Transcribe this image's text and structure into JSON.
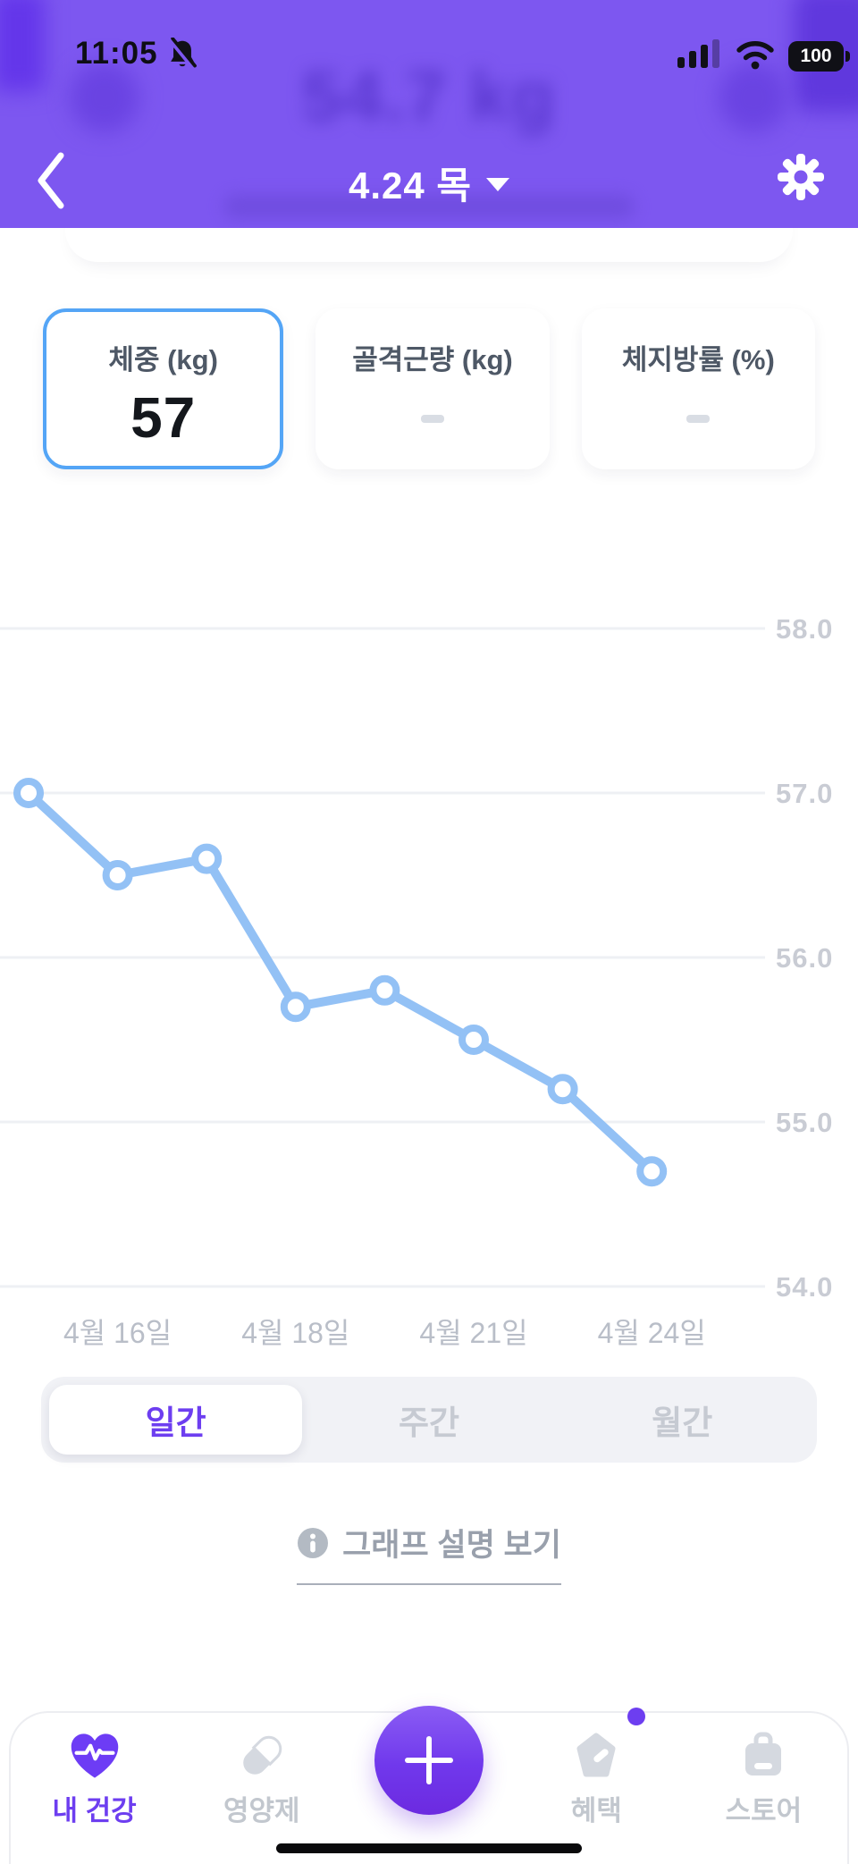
{
  "status_bar": {
    "time": "11:05",
    "battery_percent": "100",
    "icons": [
      "notifications-muted",
      "cellular-signal",
      "wifi",
      "battery"
    ]
  },
  "header": {
    "title": "4.24 목",
    "blurred_background_value": "54.7 kg",
    "accent_color": "#7d57f0"
  },
  "metrics": {
    "cards": [
      {
        "label": "체중 (kg)",
        "value": "57",
        "selected": true
      },
      {
        "label": "골격근량 (kg)",
        "value": "-",
        "selected": false
      },
      {
        "label": "체지방률 (%)",
        "value": "-",
        "selected": false
      }
    ],
    "selected_border_color": "#54a5f6"
  },
  "chart_data": {
    "type": "line",
    "series_name": "체중 (kg)",
    "values": [
      57.0,
      56.5,
      56.6,
      55.7,
      55.8,
      55.5,
      55.2,
      54.7
    ],
    "x_tick_labels": [
      "4월 16일",
      "4월 18일",
      "4월 21일",
      "4월 24일"
    ],
    "x_tick_point_indices": [
      1,
      3,
      5,
      7
    ],
    "yticks": [
      58.0,
      57.0,
      56.0,
      55.0,
      54.0
    ],
    "ylim": [
      54.0,
      58.0
    ],
    "grid": true,
    "legend": "none",
    "line_color": "#93c1f5",
    "grid_color": "#eef0f4",
    "ytick_color": "#c9ccd4",
    "xtick_color": "#b9bec8"
  },
  "period_tabs": {
    "options": [
      {
        "label": "일간",
        "selected": true
      },
      {
        "label": "주간",
        "selected": false
      },
      {
        "label": "월간",
        "selected": false
      }
    ]
  },
  "graph_info": {
    "label": "그래프 설명 보기"
  },
  "bottom_nav": {
    "items": [
      {
        "label": "내 건강",
        "icon": "heart-pulse-icon",
        "active": true
      },
      {
        "label": "영양제",
        "icon": "capsule-icon",
        "active": false
      },
      {
        "label": "",
        "icon": "plus-fab",
        "active": false
      },
      {
        "label": "혜택",
        "icon": "benefit-tag-icon",
        "active": false,
        "badge": true
      },
      {
        "label": "스토어",
        "icon": "store-bag-icon",
        "active": false
      }
    ],
    "active_color": "#6d3ef0"
  }
}
